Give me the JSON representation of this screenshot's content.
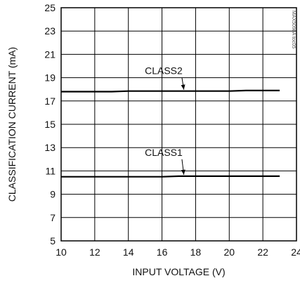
{
  "chart_data": {
    "type": "line",
    "xlabel": "INPUT VOLTAGE (V)",
    "ylabel": "CLASSIFICATION CURRENT (mA)",
    "xlim": [
      10,
      24
    ],
    "ylim": [
      5,
      25
    ],
    "xticks": [
      10,
      12,
      14,
      16,
      18,
      20,
      22,
      24
    ],
    "yticks": [
      5,
      7,
      9,
      11,
      13,
      15,
      17,
      19,
      21,
      23,
      25
    ],
    "grid": true,
    "legend": "none",
    "watermark": "MAX5098A toc05",
    "series": [
      {
        "name": "CLASS2",
        "x": [
          10,
          11,
          12,
          13,
          14,
          15,
          16,
          17,
          18,
          19,
          20,
          21,
          22,
          23
        ],
        "y": [
          17.8,
          17.8,
          17.8,
          17.8,
          17.85,
          17.85,
          17.85,
          17.85,
          17.85,
          17.85,
          17.85,
          17.9,
          17.9,
          17.9
        ]
      },
      {
        "name": "CLASS1",
        "x": [
          10,
          11,
          12,
          13,
          14,
          15,
          16,
          17,
          18,
          19,
          20,
          21,
          22,
          23
        ],
        "y": [
          10.5,
          10.5,
          10.5,
          10.5,
          10.5,
          10.5,
          10.5,
          10.55,
          10.55,
          10.55,
          10.55,
          10.55,
          10.55,
          10.55
        ]
      }
    ],
    "annotations": [
      {
        "text": "CLASS2",
        "series": 0,
        "label_x": 16.1,
        "label_y": 19.3,
        "point_x": 17.3,
        "point_y": 17.85
      },
      {
        "text": "CLASS1",
        "series": 1,
        "label_x": 16.1,
        "label_y": 12.3,
        "point_x": 17.3,
        "point_y": 10.55
      }
    ],
    "colors": {
      "line": "#000000",
      "grid": "#000000"
    }
  }
}
